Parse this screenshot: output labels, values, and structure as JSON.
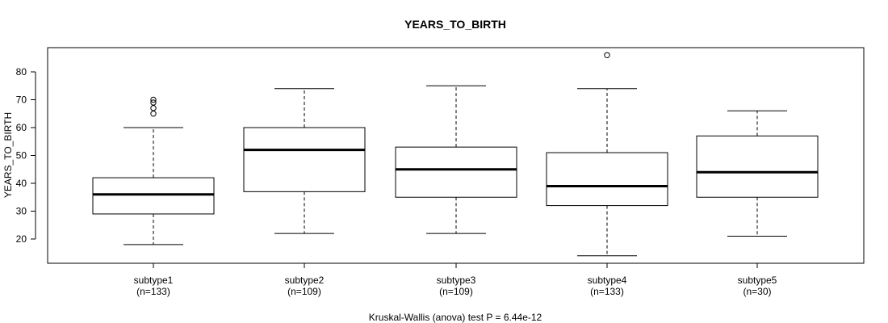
{
  "chart_data": {
    "type": "boxplot",
    "title": "YEARS_TO_BIRTH",
    "ylabel": "YEARS_TO_BIRTH",
    "xlabel": "",
    "ylim": [
      10,
      88
    ],
    "yticks": [
      20,
      30,
      40,
      50,
      60,
      70,
      80
    ],
    "footer": "Kruskal-Wallis (anova) test P = 6.44e-12",
    "groups": [
      {
        "name": "subtype1",
        "n_label": "(n=133)",
        "whisker_low": 18,
        "q1": 29,
        "median": 36,
        "q3": 42,
        "whisker_high": 60,
        "outliers": [
          65,
          67,
          69,
          70
        ]
      },
      {
        "name": "subtype2",
        "n_label": "(n=109)",
        "whisker_low": 22,
        "q1": 37,
        "median": 52,
        "q3": 60,
        "whisker_high": 74,
        "outliers": []
      },
      {
        "name": "subtype3",
        "n_label": "(n=109)",
        "whisker_low": 22,
        "q1": 35,
        "median": 45,
        "q3": 53,
        "whisker_high": 75,
        "outliers": []
      },
      {
        "name": "subtype4",
        "n_label": "(n=133)",
        "whisker_low": 14,
        "q1": 32,
        "median": 39,
        "q3": 51,
        "whisker_high": 74,
        "outliers": [
          86
        ]
      },
      {
        "name": "subtype5",
        "n_label": "(n=30)",
        "whisker_low": 21,
        "q1": 35,
        "median": 44,
        "q3": 57,
        "whisker_high": 66,
        "outliers": []
      }
    ]
  }
}
